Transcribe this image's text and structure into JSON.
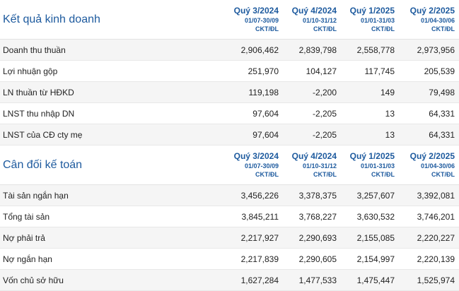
{
  "sections": [
    {
      "title": "Kết quả kinh doanh",
      "periods": [
        {
          "quarter": "Quý 3/2024",
          "dates": "01/07-30/09",
          "unit": "CKT/ĐL"
        },
        {
          "quarter": "Quý 4/2024",
          "dates": "01/10-31/12",
          "unit": "CKT/ĐL"
        },
        {
          "quarter": "Quý 1/2025",
          "dates": "01/01-31/03",
          "unit": "CKT/ĐL"
        },
        {
          "quarter": "Quý 2/2025",
          "dates": "01/04-30/06",
          "unit": "CKT/ĐL"
        }
      ],
      "rows": [
        {
          "label": "Doanh thu thuần",
          "values": [
            "2,906,462",
            "2,839,798",
            "2,558,778",
            "2,973,956"
          ]
        },
        {
          "label": "Lợi nhuận gộp",
          "values": [
            "251,970",
            "104,127",
            "117,745",
            "205,539"
          ]
        },
        {
          "label": "LN thuần từ HĐKD",
          "values": [
            "119,198",
            "-2,200",
            "149",
            "79,498"
          ]
        },
        {
          "label": "LNST thu nhập DN",
          "values": [
            "97,604",
            "-2,205",
            "13",
            "64,331"
          ]
        },
        {
          "label": "LNST của CĐ cty mẹ",
          "values": [
            "97,604",
            "-2,205",
            "13",
            "64,331"
          ]
        }
      ]
    },
    {
      "title": "Cân đối kế toán",
      "periods": [
        {
          "quarter": "Quý 3/2024",
          "dates": "01/07-30/09",
          "unit": "CKT/ĐL"
        },
        {
          "quarter": "Quý 4/2024",
          "dates": "01/10-31/12",
          "unit": "CKT/ĐL"
        },
        {
          "quarter": "Quý 1/2025",
          "dates": "01/01-31/03",
          "unit": "CKT/ĐL"
        },
        {
          "quarter": "Quý 2/2025",
          "dates": "01/04-30/06",
          "unit": "CKT/ĐL"
        }
      ],
      "rows": [
        {
          "label": "Tài sản ngắn hạn",
          "values": [
            "3,456,226",
            "3,378,375",
            "3,257,607",
            "3,392,081"
          ]
        },
        {
          "label": "Tổng tài sản",
          "values": [
            "3,845,211",
            "3,768,227",
            "3,630,532",
            "3,746,201"
          ]
        },
        {
          "label": "Nợ phải trả",
          "values": [
            "2,217,927",
            "2,290,693",
            "2,155,085",
            "2,220,227"
          ]
        },
        {
          "label": "Nợ ngắn hạn",
          "values": [
            "2,217,839",
            "2,290,605",
            "2,154,997",
            "2,220,139"
          ]
        },
        {
          "label": "Vốn chủ sở hữu",
          "values": [
            "1,627,284",
            "1,477,533",
            "1,475,447",
            "1,525,974"
          ]
        }
      ]
    }
  ]
}
